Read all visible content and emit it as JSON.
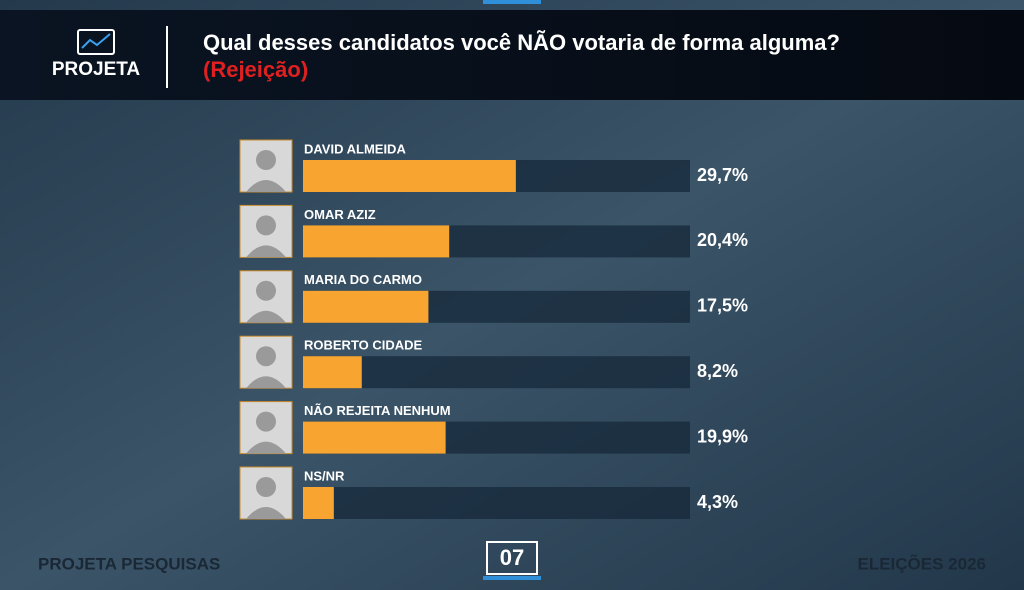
{
  "header": {
    "logo": "PROJETA"
  },
  "chart_data": {
    "type": "hbar",
    "title": "Qual desses candidatos você NÃO votaria de forma alguma?",
    "subtitle": "(Rejeição)",
    "categories": [
      "DAVID ALMEIDA",
      "OMAR AZIZ",
      "MARIA DO CARMO",
      "ROBERTO CIDADE",
      "NÃO REJEITA NENHUM",
      "NS/NR"
    ],
    "values": [
      29.7,
      20.4,
      17.5,
      8.2,
      19.9,
      4.3
    ],
    "value_labels": [
      "29,7%",
      "20,4%",
      "17,5%",
      "8,2%",
      "19,9%",
      "4,3%"
    ],
    "color": "#f7a530",
    "xlim": [
      0,
      54
    ]
  },
  "footer": {
    "left": "PROJETA PESQUISAS",
    "page": "07",
    "right": "ELEIÇÕES 2026"
  }
}
